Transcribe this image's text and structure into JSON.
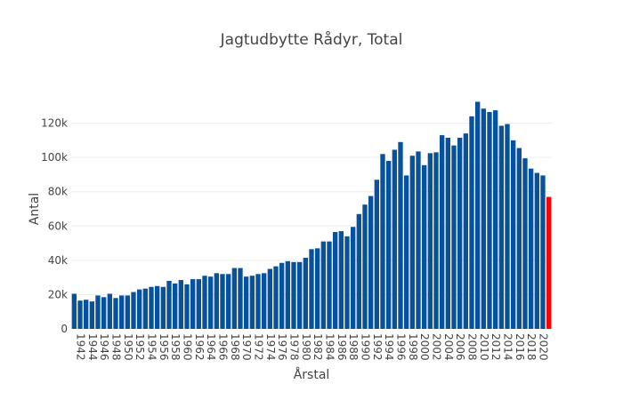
{
  "chart_data": {
    "type": "bar",
    "title": "Jagtudbytte Rådyr, Total",
    "xlabel": "Årstal",
    "ylabel": "Antal",
    "ylim": [
      0,
      140000
    ],
    "y_ticks": [
      0,
      20000,
      40000,
      60000,
      80000,
      100000,
      120000
    ],
    "y_tick_labels": [
      "0",
      "20k",
      "40k",
      "60k",
      "80k",
      "100k",
      "120k"
    ],
    "x_tick_labels": [
      "1942",
      "1944",
      "1946",
      "1948",
      "1950",
      "1952",
      "1954",
      "1956",
      "1958",
      "1960",
      "1962",
      "1964",
      "1966",
      "1968",
      "1970",
      "1972",
      "1974",
      "1976",
      "1978",
      "1980",
      "1982",
      "1984",
      "1986",
      "1988",
      "1990",
      "1992",
      "1994",
      "1996",
      "1998",
      "2000",
      "2002",
      "2004",
      "2006",
      "2008",
      "2010",
      "2012",
      "2014",
      "2016",
      "2018",
      "2020"
    ],
    "grid": true,
    "colors": {
      "bar": "#08519c",
      "highlight": "#ff0000"
    },
    "highlight_category": "2021",
    "categories": [
      "1941",
      "1942",
      "1943",
      "1944",
      "1945",
      "1946",
      "1947",
      "1948",
      "1949",
      "1950",
      "1951",
      "1952",
      "1953",
      "1954",
      "1955",
      "1956",
      "1957",
      "1958",
      "1959",
      "1960",
      "1961",
      "1962",
      "1963",
      "1964",
      "1965",
      "1966",
      "1967",
      "1968",
      "1969",
      "1970",
      "1971",
      "1972",
      "1973",
      "1974",
      "1975",
      "1976",
      "1977",
      "1978",
      "1979",
      "1980",
      "1981",
      "1982",
      "1983",
      "1984",
      "1985",
      "1986",
      "1987",
      "1988",
      "1989",
      "1990",
      "1991",
      "1992",
      "1993",
      "1994",
      "1995",
      "1996",
      "1997",
      "1998",
      "1999",
      "2000",
      "2001",
      "2002",
      "2003",
      "2004",
      "2005",
      "2006",
      "2007",
      "2008",
      "2009",
      "2010",
      "2011",
      "2012",
      "2013",
      "2014",
      "2015",
      "2016",
      "2017",
      "2018",
      "2019",
      "2020",
      "2021"
    ],
    "values": [
      20500,
      16500,
      17000,
      16000,
      19500,
      18500,
      20500,
      18000,
      19500,
      19500,
      21500,
      23000,
      23500,
      24500,
      25000,
      24500,
      28000,
      26500,
      28500,
      26000,
      29000,
      29000,
      31000,
      30500,
      32500,
      32000,
      32000,
      35500,
      35500,
      30500,
      31000,
      32000,
      32500,
      35000,
      36500,
      38500,
      39500,
      39000,
      39000,
      41500,
      46500,
      47000,
      51000,
      51000,
      56500,
      57000,
      54000,
      59500,
      67000,
      72500,
      77500,
      87000,
      102000,
      98000,
      104500,
      109000,
      89500,
      101000,
      103500,
      95500,
      102500,
      103000,
      113000,
      111500,
      107000,
      111500,
      114000,
      124000,
      132500,
      128500,
      126500,
      127500,
      118500,
      119500,
      110000,
      105500,
      99500,
      93500,
      91000,
      89500,
      77000
    ]
  }
}
